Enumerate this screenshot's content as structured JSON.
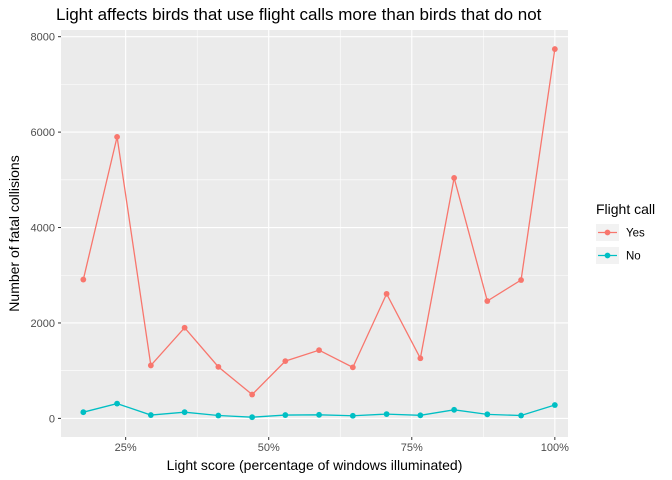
{
  "chart_data": {
    "type": "line",
    "title": "Light affects birds that use flight calls more than birds that do not",
    "xlabel": "Light score (percentage of windows illuminated)",
    "ylabel": "Number of fatal collisions",
    "x_ticks": [
      {
        "value": 0.25,
        "label": "25%"
      },
      {
        "value": 0.5,
        "label": "50%"
      },
      {
        "value": 0.75,
        "label": "75%"
      },
      {
        "value": 1.0,
        "label": "100%"
      }
    ],
    "y_ticks": [
      {
        "value": 0,
        "label": "0"
      },
      {
        "value": 2000,
        "label": "2000"
      },
      {
        "value": 4000,
        "label": "4000"
      },
      {
        "value": 6000,
        "label": "6000"
      },
      {
        "value": 8000,
        "label": "8000"
      }
    ],
    "xlim": [
      0.137,
      1.023
    ],
    "ylim": [
      -390,
      8140
    ],
    "grid": true,
    "legend": {
      "title": "Flight call",
      "position": "right"
    },
    "x": [
      0.176,
      0.235,
      0.294,
      0.353,
      0.412,
      0.471,
      0.529,
      0.588,
      0.647,
      0.706,
      0.765,
      0.824,
      0.882,
      0.941,
      1.0
    ],
    "series": [
      {
        "name": "Yes",
        "color": "#F8766D",
        "values": [
          2910,
          5900,
          1110,
          1900,
          1080,
          500,
          1200,
          1430,
          1070,
          2610,
          1260,
          5040,
          2460,
          2900,
          7740
        ]
      },
      {
        "name": "No",
        "color": "#00BFC4",
        "values": [
          130,
          310,
          70,
          130,
          60,
          25,
          70,
          75,
          55,
          90,
          65,
          180,
          85,
          60,
          280
        ]
      }
    ]
  }
}
